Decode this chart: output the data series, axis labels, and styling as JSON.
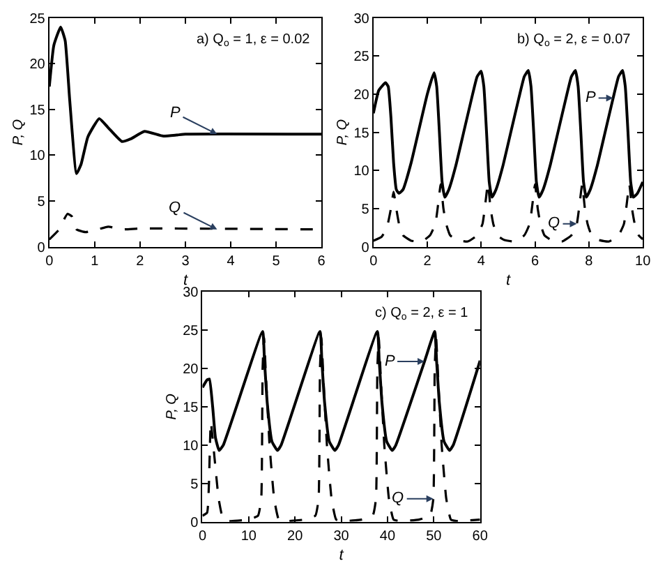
{
  "chart_data": [
    {
      "type": "line",
      "title": "a) Q$_{o}$ = 1, ε = 0.02",
      "xlabel": "t",
      "ylabel": "P, Q",
      "xlim": [
        0,
        6
      ],
      "xticks": [
        0,
        1,
        2,
        3,
        4,
        5,
        6
      ],
      "ylim": [
        0,
        25
      ],
      "yticks": [
        0,
        5,
        10,
        15,
        20,
        25
      ],
      "series": [
        {
          "color": "#000000",
          "line_style": "solid",
          "x": [
            0,
            0.1,
            0.25,
            0.35,
            0.45,
            0.6,
            0.7,
            0.85,
            1.1,
            1.3,
            1.6,
            1.8,
            2.1,
            2.5,
            2.8,
            3,
            6
          ],
          "values": [
            17.5,
            22,
            24,
            22.5,
            16,
            8,
            9,
            12,
            14,
            13,
            11.5,
            11.8,
            12.6,
            12.1,
            12.2,
            12.3,
            12.3
          ]
        },
        {
          "color": "#000000",
          "line_style": "dashed",
          "x": [
            0,
            0.2,
            0.4,
            0.5,
            0.6,
            0.8,
            1,
            1.3,
            1.6,
            2,
            6
          ],
          "values": [
            0.8,
            1.8,
            3.6,
            3.3,
            1.9,
            1.6,
            1.8,
            2.2,
            1.9,
            2.0,
            1.9
          ]
        }
      ],
      "annotations": [
        {
          "text": "P",
          "x": 3.7,
          "y": 12.3
        },
        {
          "text": "Q",
          "x": 3.7,
          "y": 1.9
        }
      ]
    },
    {
      "type": "line",
      "title": "b) Q$_{o}$ = 2, ε = 0.07",
      "xlabel": "t",
      "ylabel": "P, Q",
      "xlim": [
        0,
        10
      ],
      "xticks": [
        0,
        2,
        4,
        6,
        8,
        10
      ],
      "ylim": [
        0,
        30
      ],
      "yticks": [
        0,
        5,
        10,
        15,
        20,
        25,
        30
      ],
      "series": [
        {
          "color": "#000000",
          "line_style": "solid",
          "x": [
            0,
            0.2,
            0.45,
            0.55,
            0.65,
            0.75,
            0.85,
            0.95,
            1.1,
            1.4,
            1.7,
            2.0,
            2.25,
            2.35,
            2.45,
            2.55,
            2.65,
            2.8,
            3.05,
            3.35,
            3.65,
            3.85,
            4.0,
            4.1,
            4.2,
            4.3,
            4.4,
            4.55,
            4.8,
            5.1,
            5.4,
            5.6,
            5.75,
            5.85,
            5.95,
            6.05,
            6.15,
            6.3,
            6.55,
            6.85,
            7.15,
            7.35,
            7.5,
            7.6,
            7.7,
            7.8,
            7.9,
            8.05,
            8.3,
            8.6,
            8.9,
            9.1,
            9.25,
            9.35,
            9.45,
            9.55,
            9.65,
            9.8,
            10
          ],
          "values": [
            17.5,
            20.5,
            21.5,
            21,
            17,
            11,
            7.5,
            7,
            7.5,
            11,
            15.5,
            20,
            22.8,
            21,
            15,
            8.5,
            6.5,
            7.5,
            10.5,
            15,
            19.5,
            22.3,
            23,
            21,
            15,
            8.5,
            6.5,
            7.5,
            10.5,
            15,
            19.5,
            22.3,
            23.1,
            21,
            15,
            8.5,
            6.5,
            7.5,
            10.5,
            15,
            19.5,
            22.3,
            23.1,
            21,
            15,
            8.5,
            6.5,
            7.5,
            10.5,
            15,
            19.5,
            22.3,
            23.1,
            21,
            15,
            8.5,
            6.5,
            7,
            8.5
          ]
        },
        {
          "color": "#000000",
          "line_style": "dashed",
          "x": [
            0,
            0.3,
            0.5,
            0.65,
            0.75,
            0.85,
            0.95,
            1.1,
            1.4,
            1.8,
            2.1,
            2.3,
            2.4,
            2.5,
            2.6,
            2.7,
            2.85,
            3.1,
            3.5,
            3.85,
            4.05,
            4.15,
            4.25,
            4.35,
            4.45,
            4.6,
            4.85,
            5.25,
            5.6,
            5.8,
            5.9,
            6.0,
            6.1,
            6.2,
            6.35,
            6.6,
            7.0,
            7.35,
            7.55,
            7.65,
            7.75,
            7.85,
            7.95,
            8.1,
            8.35,
            8.75,
            9.1,
            9.3,
            9.4,
            9.5,
            9.6,
            9.7,
            9.85,
            10
          ],
          "values": [
            0.8,
            1.3,
            2.5,
            5,
            7.2,
            5,
            3,
            1.5,
            0.8,
            0.7,
            1.5,
            3,
            5.5,
            8.2,
            5,
            3,
            1.5,
            0.9,
            0.7,
            1.5,
            3,
            5.5,
            8.3,
            5,
            3,
            1.5,
            0.9,
            0.7,
            1.5,
            3,
            5.5,
            8.2,
            5,
            3,
            1.5,
            0.9,
            0.7,
            1.5,
            3,
            5.5,
            8.2,
            5,
            3,
            1.5,
            0.9,
            0.7,
            1.5,
            3,
            5.5,
            8.2,
            5,
            3,
            1.5,
            1.0
          ]
        }
      ],
      "annotations": [
        {
          "text": "P",
          "x": 8.9,
          "y": 19.5
        },
        {
          "text": "Q",
          "x": 7.55,
          "y": 3
        }
      ]
    },
    {
      "type": "line",
      "title": "c) Q$_{o}$ = 2, ε = 1",
      "xlabel": "t",
      "ylabel": "P, Q",
      "xlim": [
        0,
        60
      ],
      "xticks": [
        0,
        10,
        20,
        30,
        40,
        50,
        60
      ],
      "ylim": [
        0,
        30
      ],
      "yticks": [
        0,
        5,
        10,
        15,
        20,
        25,
        30
      ],
      "series": [
        {
          "color": "#000000",
          "line_style": "solid",
          "x": [
            0,
            1,
            1.5,
            2.2,
            2.8,
            3.6,
            4.5,
            13,
            13.4,
            14,
            15,
            16.2,
            17,
            25.4,
            25.8,
            26.4,
            27.4,
            28.6,
            29.4,
            37.8,
            38.2,
            38.8,
            39.8,
            41,
            41.8,
            48,
            50.2,
            50.6,
            51.2,
            52.2,
            53.4,
            54.2,
            60
          ],
          "values": [
            17.5,
            18.5,
            18.6,
            15,
            11,
            9.3,
            10,
            24.8,
            21,
            15.5,
            10.5,
            9.3,
            10,
            24.8,
            21,
            15.5,
            10.5,
            9.3,
            10,
            24.8,
            21,
            15.5,
            10.5,
            9.3,
            10,
            20.9,
            24.8,
            21,
            15.5,
            10.5,
            9.3,
            10,
            21
          ]
        },
        {
          "color": "#000000",
          "line_style": "dashed",
          "x": [
            0,
            1,
            1.4,
            1.8,
            2.5,
            3.5,
            4.5,
            6,
            10,
            12,
            12.7,
            13,
            13.3,
            13.8,
            14.5,
            15.5,
            16.5,
            18,
            22,
            24.4,
            25.1,
            25.4,
            25.7,
            26.2,
            26.9,
            27.9,
            28.9,
            30.4,
            34.4,
            36.8,
            37.5,
            37.8,
            38.1,
            38.6,
            39.3,
            40.3,
            41.3,
            42.8,
            46.8,
            49.2,
            49.9,
            50.2,
            50.5,
            51,
            51.7,
            52.7,
            53.7,
            55.2,
            60
          ],
          "values": [
            0.8,
            1.2,
            5,
            13,
            9,
            3,
            0.3,
            0.1,
            0.3,
            0.8,
            3,
            20,
            24,
            18,
            10,
            3,
            0.3,
            0.1,
            0.3,
            0.8,
            3,
            20,
            24,
            18,
            10,
            3,
            0.3,
            0.1,
            0.3,
            0.8,
            3,
            20,
            24,
            18,
            10,
            3,
            0.3,
            0.1,
            0.3,
            0.8,
            3,
            20,
            24,
            18,
            10,
            3,
            0.3,
            0.1,
            0.3
          ]
        }
      ],
      "annotations": [
        {
          "text": "P",
          "x": 48,
          "y": 20.9
        },
        {
          "text": "Q",
          "x": 49.9,
          "y": 3
        }
      ]
    }
  ]
}
